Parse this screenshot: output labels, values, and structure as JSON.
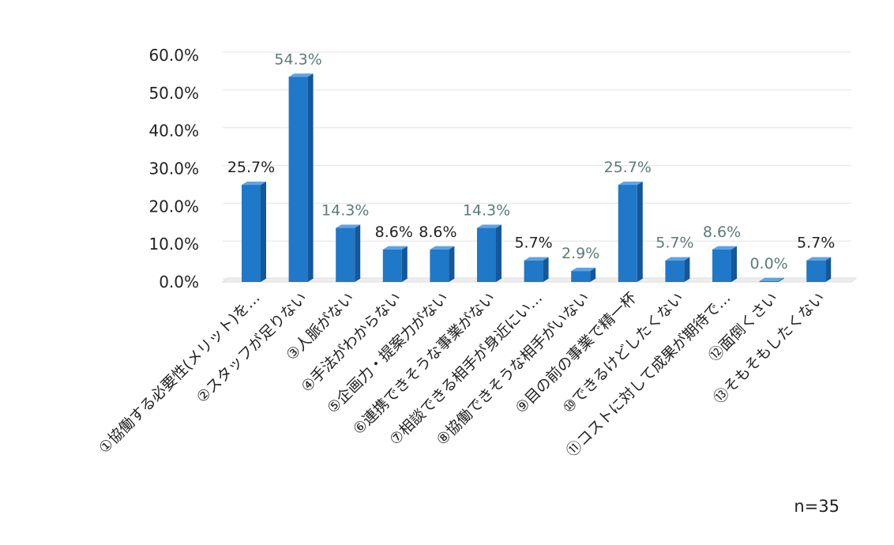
{
  "chart_data": {
    "type": "bar",
    "categories": [
      "①協働する必要性(メリット)を…",
      "②スタッフが足りない",
      "③人脈がない",
      "④手法がわからない",
      "⑤企画力・提案力がない",
      "⑥連携できそうな事業がない",
      "⑦相談できる相手が身近にい…",
      "⑧協働できそうな相手がいない",
      "⑨目の前の事業で精一杯",
      "⑩できるけどしたくない",
      "⑪コストに対して成果が期待で…",
      "⑫面倒くさい",
      "⑬そもそもしたくない"
    ],
    "values": [
      25.7,
      54.3,
      14.3,
      8.6,
      8.6,
      14.3,
      5.7,
      2.9,
      25.7,
      5.7,
      8.6,
      0.0,
      5.7
    ],
    "data_labels": [
      "25.7%",
      "54.3%",
      "14.3%",
      "8.6%",
      "8.6%",
      "14.3%",
      "5.7%",
      "2.9%",
      "25.7%",
      "5.7%",
      "8.6%",
      "0.0%",
      "5.7%"
    ],
    "yticks": [
      "0.0%",
      "10.0%",
      "20.0%",
      "30.0%",
      "40.0%",
      "50.0%",
      "60.0%"
    ],
    "ylim": [
      0,
      60
    ],
    "grid": true,
    "bar_color": "#1f78c8",
    "bar_side_color": "#14579a",
    "bar_top_color": "#5fa3e2",
    "label_colors": {
      "dark": "#222222",
      "muted": "#5c7a7a"
    },
    "note": "n=35"
  }
}
